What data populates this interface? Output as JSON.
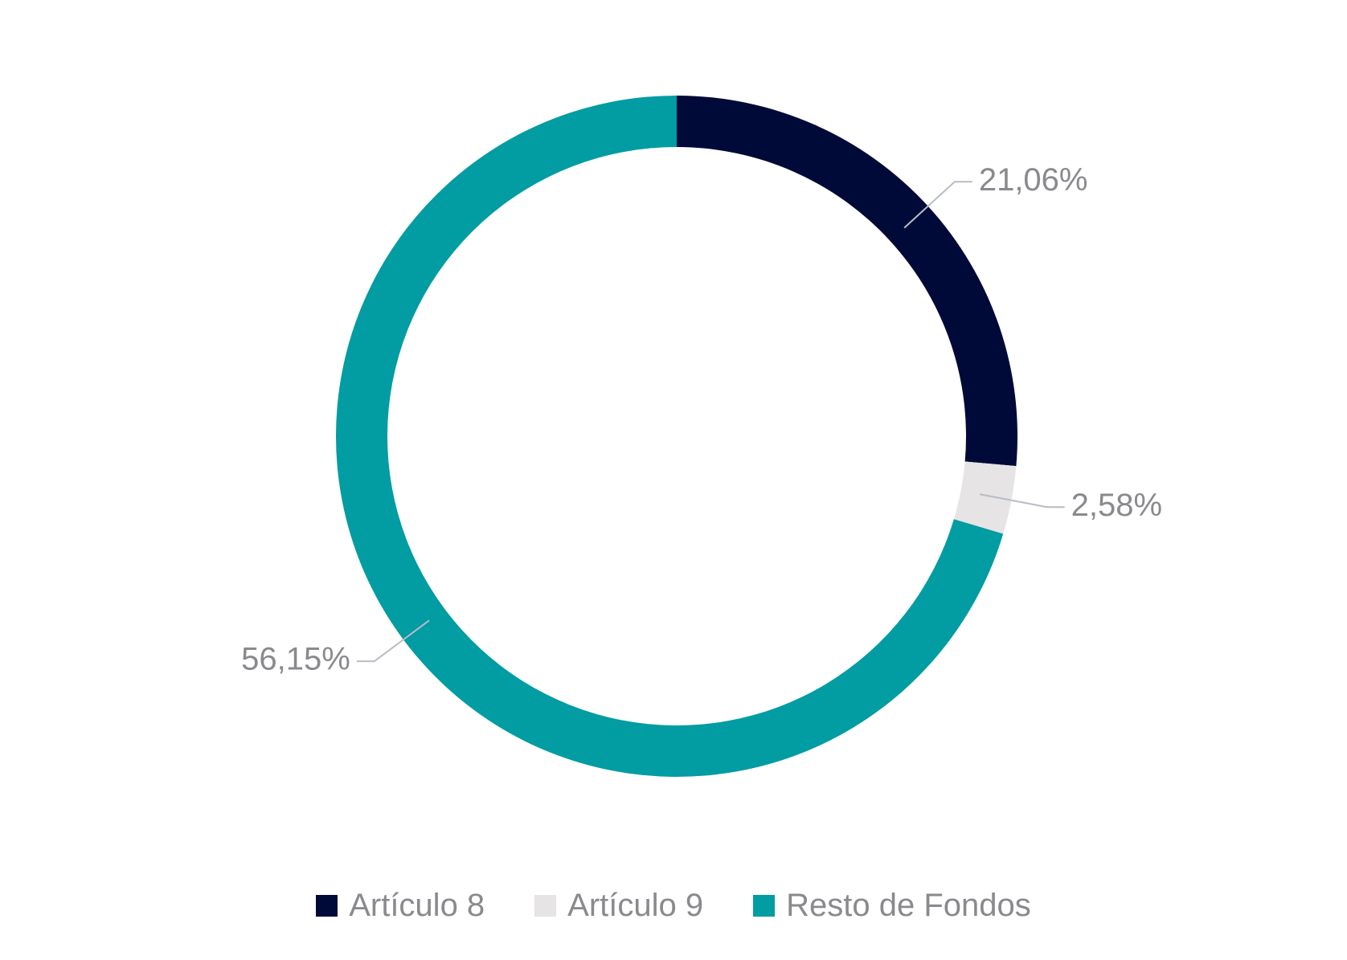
{
  "chart_data": {
    "type": "donut",
    "categories": [
      "Artículo 8",
      "Artículo 9",
      "Resto de Fondos"
    ],
    "values": [
      21.06,
      2.58,
      56.15
    ],
    "value_labels": [
      "21,06%",
      "2,58%",
      "56,15%"
    ],
    "colors": [
      "#000a38",
      "#e6e4e4",
      "#029ca3"
    ]
  }
}
